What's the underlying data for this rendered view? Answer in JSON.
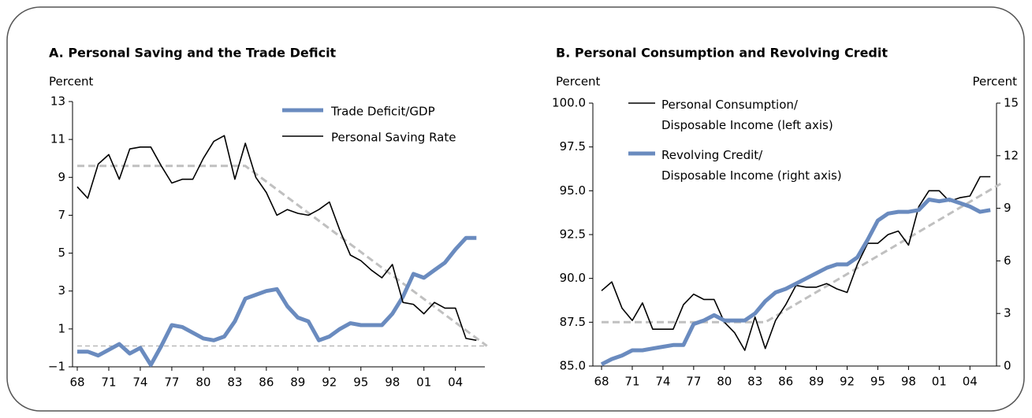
{
  "chart_data": [
    {
      "type": "line",
      "title": "A. Personal Saving and the Trade Deficit",
      "ylabel": "Percent",
      "x": [
        1968,
        1969,
        1970,
        1971,
        1972,
        1973,
        1974,
        1975,
        1976,
        1977,
        1978,
        1979,
        1980,
        1981,
        1982,
        1983,
        1984,
        1985,
        1986,
        1987,
        1988,
        1989,
        1990,
        1991,
        1992,
        1993,
        1994,
        1995,
        1996,
        1997,
        1998,
        1999,
        2000,
        2001,
        2002,
        2003,
        2004,
        2005,
        2006
      ],
      "series": [
        {
          "name": "Trade Deficit/GDP",
          "color": "#6a8bbf",
          "style": "thick",
          "values": [
            -0.2,
            -0.2,
            -0.4,
            -0.1,
            0.2,
            -0.3,
            0.0,
            -0.9,
            0.1,
            1.2,
            1.1,
            0.8,
            0.5,
            0.4,
            0.6,
            1.4,
            2.6,
            2.8,
            3.0,
            3.1,
            2.2,
            1.6,
            1.4,
            0.4,
            0.6,
            1.0,
            1.3,
            1.2,
            1.2,
            1.2,
            1.8,
            2.7,
            3.9,
            3.7,
            4.1,
            4.5,
            5.2,
            5.8,
            5.8
          ]
        },
        {
          "name": "Personal Saving Rate",
          "color": "#000000",
          "style": "thin",
          "values": [
            8.5,
            7.9,
            9.7,
            10.2,
            8.9,
            10.5,
            10.6,
            10.6,
            9.6,
            8.7,
            8.9,
            8.9,
            10.0,
            10.9,
            11.2,
            8.9,
            10.8,
            9.0,
            8.2,
            7.0,
            7.3,
            7.1,
            7.0,
            7.3,
            7.7,
            6.2,
            4.9,
            4.6,
            4.1,
            3.7,
            4.4,
            2.4,
            2.3,
            1.8,
            2.4,
            2.1,
            2.1,
            0.5,
            0.4
          ]
        }
      ],
      "reference_lines": [
        {
          "x": [
            1968,
            1984,
            2007
          ],
          "values": [
            9.6,
            9.6,
            0.1
          ],
          "color": "#c0c0c0",
          "style": "dashed-thick"
        },
        {
          "x": [
            1968,
            2007
          ],
          "values": [
            0.1,
            0.1
          ],
          "color": "#b0b0b0",
          "style": "dashed-thin"
        }
      ],
      "xlim": [
        1967.55,
        2006.8
      ],
      "xticks": [
        {
          "value": 1968,
          "label": "68"
        },
        {
          "value": 1971,
          "label": "71"
        },
        {
          "value": 1974,
          "label": "74"
        },
        {
          "value": 1977,
          "label": "77"
        },
        {
          "value": 1980,
          "label": "80"
        },
        {
          "value": 1983,
          "label": "83"
        },
        {
          "value": 1986,
          "label": "86"
        },
        {
          "value": 1989,
          "label": "89"
        },
        {
          "value": 1992,
          "label": "92"
        },
        {
          "value": 1995,
          "label": "95"
        },
        {
          "value": 1998,
          "label": "98"
        },
        {
          "value": 2001,
          "label": "01"
        },
        {
          "value": 2004,
          "label": "04"
        }
      ],
      "ylim": [
        -1,
        13
      ],
      "yticks": [
        {
          "value": -1,
          "label": "−1"
        },
        1,
        3,
        5,
        7,
        9,
        11,
        13
      ],
      "legend": "upper right"
    },
    {
      "type": "line",
      "title": "B. Personal Consumption and Revolving Credit",
      "ylabel": "Percent",
      "y2label": "Percent",
      "x": [
        1968,
        1969,
        1970,
        1971,
        1972,
        1973,
        1974,
        1975,
        1976,
        1977,
        1978,
        1979,
        1980,
        1981,
        1982,
        1983,
        1984,
        1985,
        1986,
        1987,
        1988,
        1989,
        1990,
        1991,
        1992,
        1993,
        1994,
        1995,
        1996,
        1997,
        1998,
        1999,
        2000,
        2001,
        2002,
        2003,
        2004,
        2005,
        2006
      ],
      "series": [
        {
          "name": "Personal Consumption/\nDisposable Income (left axis)",
          "color": "#000000",
          "style": "thin",
          "values": [
            89.3,
            89.8,
            88.3,
            87.6,
            88.6,
            87.1,
            87.1,
            87.1,
            88.5,
            89.1,
            88.8,
            88.8,
            87.5,
            86.9,
            85.9,
            87.8,
            86.0,
            87.6,
            88.5,
            89.6,
            89.5,
            89.5,
            89.7,
            89.4,
            89.2,
            90.8,
            92.0,
            92.0,
            92.5,
            92.7,
            91.9,
            94.1,
            95.0,
            95.0,
            94.4,
            94.6,
            94.7,
            95.8,
            95.8
          ]
        },
        {
          "name": "Revolving Credit/\nDisposable Income (right axis)",
          "color": "#6a8bbf",
          "style": "thick",
          "axis": "y2",
          "values": [
            0.1,
            0.4,
            0.6,
            0.9,
            0.9,
            1.0,
            1.1,
            1.2,
            1.2,
            2.4,
            2.6,
            2.9,
            2.6,
            2.6,
            2.6,
            3.0,
            3.7,
            4.2,
            4.4,
            4.7,
            5.0,
            5.3,
            5.6,
            5.8,
            5.8,
            6.2,
            7.2,
            8.3,
            8.7,
            8.8,
            8.8,
            8.9,
            9.5,
            9.4,
            9.5,
            9.3,
            9.1,
            8.8,
            8.9
          ]
        }
      ],
      "reference_lines": [
        {
          "x": [
            1968,
            1984,
            2007
          ],
          "values": [
            87.5,
            87.5,
            95.4
          ],
          "color": "#c0c0c0",
          "style": "dashed-thick"
        }
      ],
      "xlim": [
        1967.15,
        2006.6
      ],
      "xticks": [
        {
          "value": 1968,
          "label": "68"
        },
        {
          "value": 1971,
          "label": "71"
        },
        {
          "value": 1974,
          "label": "74"
        },
        {
          "value": 1977,
          "label": "77"
        },
        {
          "value": 1980,
          "label": "80"
        },
        {
          "value": 1983,
          "label": "83"
        },
        {
          "value": 1986,
          "label": "86"
        },
        {
          "value": 1989,
          "label": "89"
        },
        {
          "value": 1992,
          "label": "92"
        },
        {
          "value": 1995,
          "label": "95"
        },
        {
          "value": 1998,
          "label": "98"
        },
        {
          "value": 2001,
          "label": "01"
        },
        {
          "value": 2004,
          "label": "04"
        }
      ],
      "ylim": [
        85,
        100
      ],
      "yticks": [
        {
          "value": 85,
          "label": "85.0"
        },
        87.5,
        {
          "value": 90,
          "label": "90.0"
        },
        92.5,
        {
          "value": 95,
          "label": "95.0"
        },
        97.5,
        {
          "value": 100,
          "label": "100.0"
        }
      ],
      "y2lim": [
        0,
        15
      ],
      "y2ticks": [
        0,
        3,
        6,
        9,
        12,
        15
      ],
      "legend": "upper left"
    }
  ]
}
